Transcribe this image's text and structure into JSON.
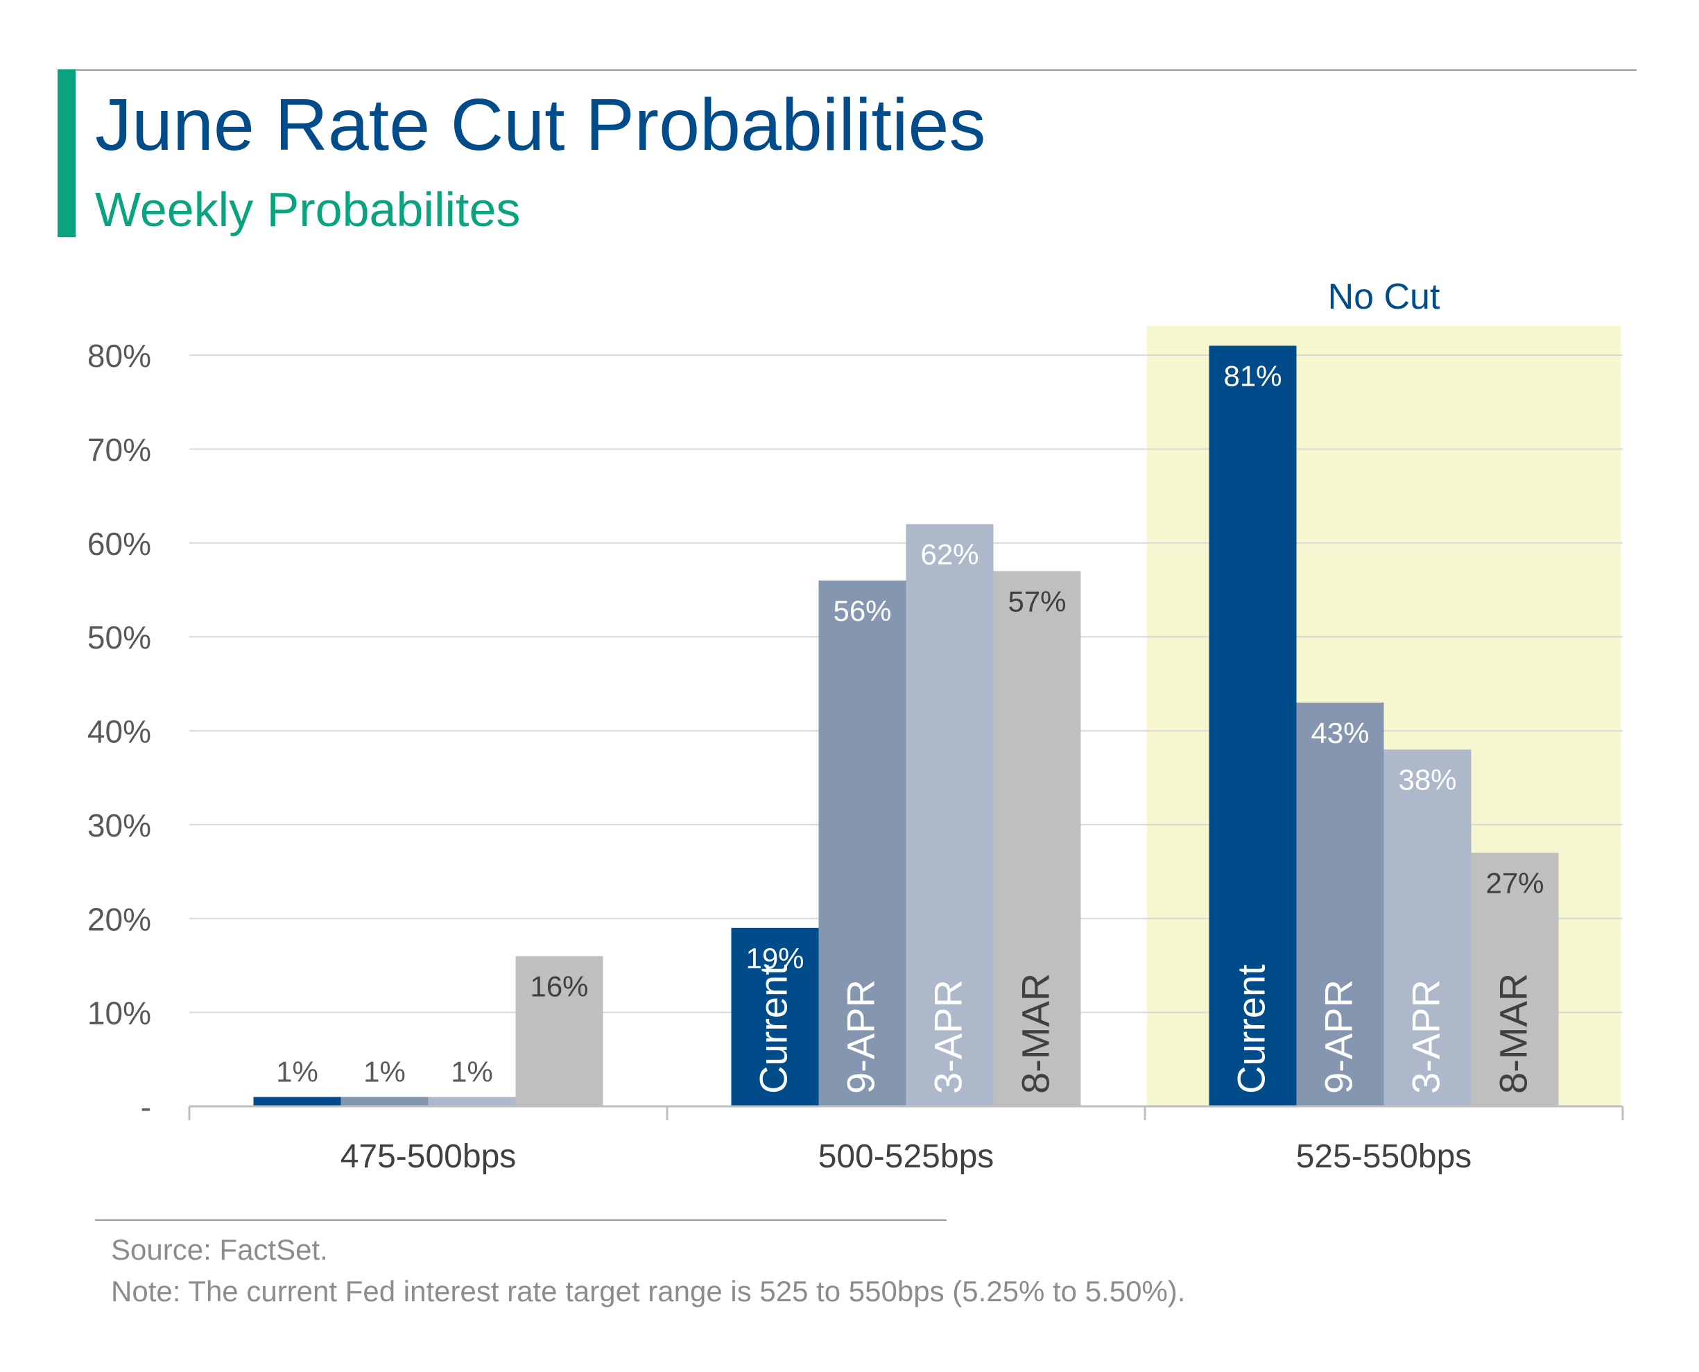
{
  "header": {
    "title": "June Rate Cut Probabilities",
    "subtitle": "Weekly Probabilites"
  },
  "footer": {
    "source": "Source: FactSet.",
    "note": "Note: The current Fed interest rate target range is 525 to 550bps (5.25% to 5.50%)."
  },
  "colors": {
    "title": "#004b8a",
    "accent": "#0aa37f",
    "highlight": "#f6f6d0",
    "series": [
      "#004b8a",
      "#8597b0",
      "#adb8cb",
      "#bfbfbf"
    ]
  },
  "chart_data": {
    "type": "bar",
    "categories": [
      "475-500bps",
      "500-525bps",
      "525-550bps"
    ],
    "series": [
      {
        "name": "Current",
        "values": [
          1,
          19,
          81
        ],
        "labels": [
          "1%",
          "19%",
          "81%"
        ]
      },
      {
        "name": "9-APR",
        "values": [
          1,
          56,
          43
        ],
        "labels": [
          "1%",
          "56%",
          "43%"
        ]
      },
      {
        "name": "3-APR",
        "values": [
          1,
          62,
          38
        ],
        "labels": [
          "1%",
          "62%",
          "38%"
        ]
      },
      {
        "name": "8-MAR",
        "values": [
          16,
          57,
          27
        ],
        "labels": [
          "16%",
          "57%",
          "27%"
        ]
      }
    ],
    "y_ticks": [
      "-",
      "10%",
      "20%",
      "30%",
      "40%",
      "50%",
      "60%",
      "70%",
      "80%"
    ],
    "ylim": [
      0,
      80
    ],
    "grid": true,
    "highlight": {
      "category": "525-550bps",
      "label": "No Cut"
    },
    "xlabel": "",
    "ylabel": ""
  }
}
